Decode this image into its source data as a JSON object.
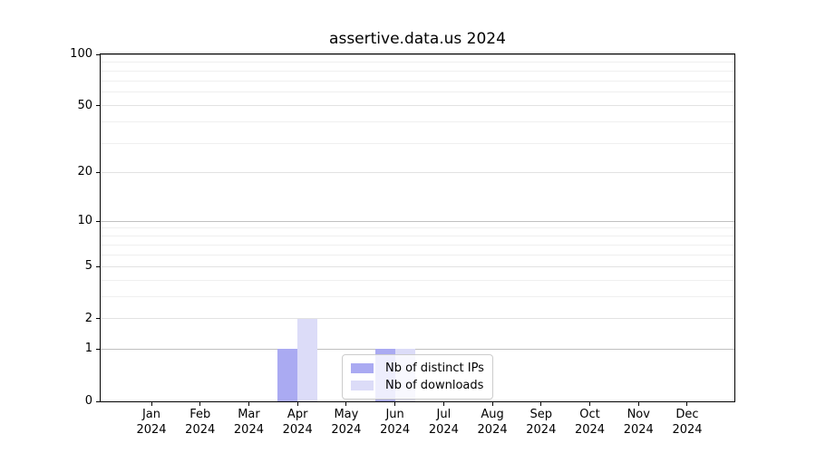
{
  "chart_data": {
    "type": "bar",
    "title": "assertive.data.us 2024",
    "categories": [
      "Jan",
      "Feb",
      "Mar",
      "Apr",
      "May",
      "Jun",
      "Jul",
      "Aug",
      "Sep",
      "Oct",
      "Nov",
      "Dec"
    ],
    "x_year": "2024",
    "series": [
      {
        "name": "Nb of distinct IPs",
        "color": "#aaaaf2",
        "values": [
          0,
          0,
          0,
          1,
          0,
          1,
          0,
          0,
          0,
          0,
          0,
          0
        ]
      },
      {
        "name": "Nb of downloads",
        "color": "#dcdcf8",
        "values": [
          0,
          0,
          0,
          2,
          0,
          1,
          0,
          0,
          0,
          0,
          0,
          0
        ]
      }
    ],
    "y_axis": {
      "scale": "log1p",
      "ticks": [
        0,
        1,
        2,
        5,
        10,
        20,
        50,
        100
      ],
      "minor_gridlines": [
        3,
        4,
        6,
        7,
        8,
        9,
        30,
        40,
        60,
        70,
        80,
        90
      ],
      "max": 100
    },
    "xlabel": "",
    "ylabel": "",
    "grid": true,
    "legend": {
      "position": "lower center",
      "entries": [
        "Nb of distinct IPs",
        "Nb of downloads"
      ]
    }
  },
  "colors": {
    "background": "#ffffff",
    "axis": "#000000",
    "text": "#000000",
    "grid_major": "#c0c0c0",
    "grid_mid": "#e2e2e2",
    "grid_minor": "#efefef",
    "legend_border": "#cccccc"
  }
}
